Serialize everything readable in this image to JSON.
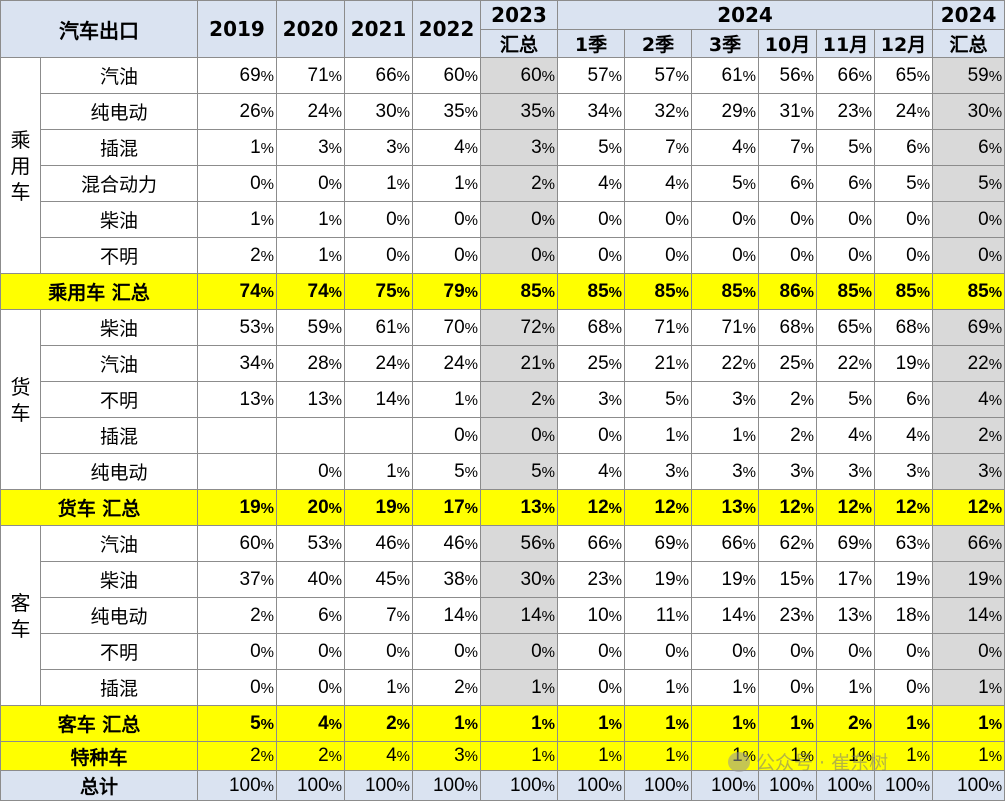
{
  "header": {
    "title": "汽车出口",
    "years": [
      "2019",
      "2020",
      "2021",
      "2022"
    ],
    "y2023_top": "2023",
    "y2023_bottom": "汇总",
    "y2024": "2024",
    "periods": [
      "1季",
      "2季",
      "3季",
      "10月",
      "11月",
      "12月"
    ],
    "y2024sum_top": "2024",
    "y2024sum_bottom": "汇总"
  },
  "groups": [
    {
      "name": "乘用车",
      "rows": [
        {
          "label": "汽油",
          "values": [
            "69",
            "71",
            "66",
            "60",
            "60",
            "57",
            "57",
            "61",
            "56",
            "66",
            "65",
            "59"
          ]
        },
        {
          "label": "纯电动",
          "values": [
            "26",
            "24",
            "30",
            "35",
            "35",
            "34",
            "32",
            "29",
            "31",
            "23",
            "24",
            "30"
          ]
        },
        {
          "label": "插混",
          "values": [
            "1",
            "3",
            "3",
            "4",
            "3",
            "5",
            "7",
            "4",
            "7",
            "5",
            "6",
            "6"
          ]
        },
        {
          "label": "混合动力",
          "values": [
            "0",
            "0",
            "1",
            "1",
            "2",
            "4",
            "4",
            "5",
            "6",
            "6",
            "5",
            "5"
          ]
        },
        {
          "label": "柴油",
          "values": [
            "1",
            "1",
            "0",
            "0",
            "0",
            "0",
            "0",
            "0",
            "0",
            "0",
            "0",
            "0"
          ]
        },
        {
          "label": "不明",
          "values": [
            "2",
            "1",
            "0",
            "0",
            "0",
            "0",
            "0",
            "0",
            "0",
            "0",
            "0",
            "0"
          ]
        }
      ],
      "sum": {
        "label": "乘用车 汇总",
        "values": [
          "74",
          "74",
          "75",
          "79",
          "85",
          "85",
          "85",
          "85",
          "86",
          "85",
          "85",
          "85"
        ]
      }
    },
    {
      "name": "货车",
      "rows": [
        {
          "label": "柴油",
          "values": [
            "53",
            "59",
            "61",
            "70",
            "72",
            "68",
            "71",
            "71",
            "68",
            "65",
            "68",
            "69"
          ]
        },
        {
          "label": "汽油",
          "values": [
            "34",
            "28",
            "24",
            "24",
            "21",
            "25",
            "21",
            "22",
            "25",
            "22",
            "19",
            "22"
          ]
        },
        {
          "label": "不明",
          "values": [
            "13",
            "13",
            "14",
            "1",
            "2",
            "3",
            "5",
            "3",
            "2",
            "5",
            "6",
            "4"
          ]
        },
        {
          "label": "插混",
          "values": [
            "",
            "",
            "",
            "0",
            "0",
            "0",
            "1",
            "1",
            "2",
            "4",
            "4",
            "2"
          ]
        },
        {
          "label": "纯电动",
          "values": [
            "",
            "0",
            "1",
            "5",
            "5",
            "4",
            "3",
            "3",
            "3",
            "3",
            "3",
            "3"
          ]
        }
      ],
      "sum": {
        "label": "货车 汇总",
        "values": [
          "19",
          "20",
          "19",
          "17",
          "13",
          "12",
          "12",
          "13",
          "12",
          "12",
          "12",
          "12"
        ]
      }
    },
    {
      "name": "客车",
      "rows": [
        {
          "label": "汽油",
          "values": [
            "60",
            "53",
            "46",
            "46",
            "56",
            "66",
            "69",
            "66",
            "62",
            "69",
            "63",
            "66"
          ]
        },
        {
          "label": "柴油",
          "values": [
            "37",
            "40",
            "45",
            "38",
            "30",
            "23",
            "19",
            "19",
            "15",
            "17",
            "19",
            "19"
          ]
        },
        {
          "label": "纯电动",
          "values": [
            "2",
            "6",
            "7",
            "14",
            "14",
            "10",
            "11",
            "14",
            "23",
            "13",
            "18",
            "14"
          ]
        },
        {
          "label": "不明",
          "values": [
            "0",
            "0",
            "0",
            "0",
            "0",
            "0",
            "0",
            "0",
            "0",
            "0",
            "0",
            "0"
          ]
        },
        {
          "label": "插混",
          "values": [
            "0",
            "0",
            "1",
            "2",
            "1",
            "0",
            "1",
            "1",
            "0",
            "1",
            "0",
            "1"
          ]
        }
      ],
      "sum": {
        "label": "客车 汇总",
        "values": [
          "5",
          "4",
          "2",
          "1",
          "1",
          "1",
          "1",
          "1",
          "1",
          "2",
          "1",
          "1"
        ]
      }
    }
  ],
  "special": {
    "label": "特种车",
    "values": [
      "2",
      "2",
      "4",
      "3",
      "1",
      "1",
      "1",
      "1",
      "1",
      "1",
      "1",
      "1"
    ]
  },
  "total": {
    "label": "总计",
    "values": [
      "100",
      "100",
      "100",
      "100",
      "100",
      "100",
      "100",
      "100",
      "100",
      "100",
      "100",
      "100"
    ]
  },
  "percent_sign": "%",
  "watermark": "公众号 · 崔东树",
  "colors": {
    "header_bg": "#dae3f1",
    "summary_bg": "#ffff00",
    "summary2023_bg": "#d9d9d9",
    "border": "#8c8c8c"
  }
}
